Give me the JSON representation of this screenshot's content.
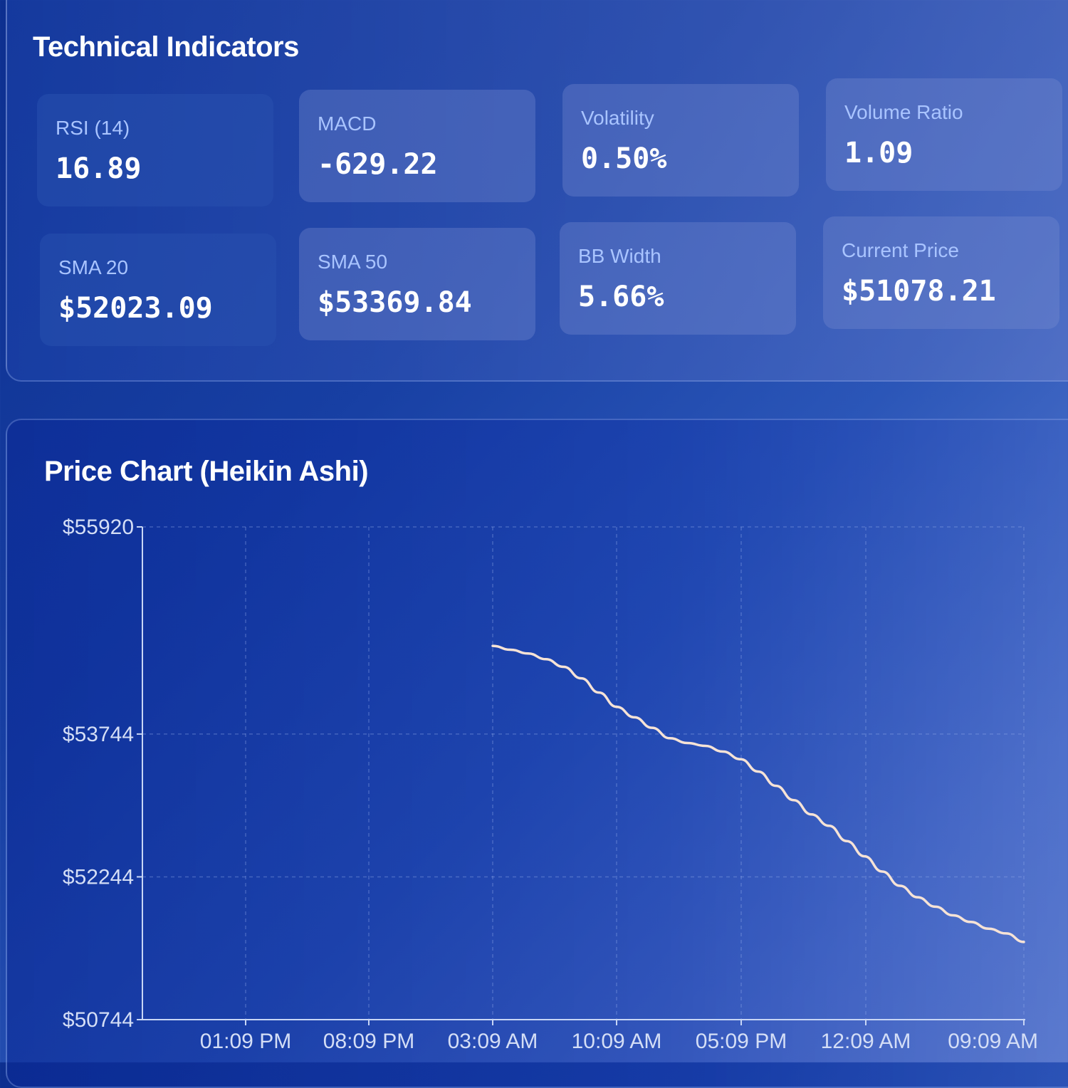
{
  "indicators": {
    "title": "Technical Indicators",
    "cards": [
      {
        "label": "RSI (14)",
        "value": "16.89"
      },
      {
        "label": "MACD",
        "value": "-629.22"
      },
      {
        "label": "Volatility",
        "value": "0.50%"
      },
      {
        "label": "Volume Ratio",
        "value": "1.09"
      },
      {
        "label": "SMA 20",
        "value": "$52023.09"
      },
      {
        "label": "SMA 50",
        "value": "$53369.84"
      },
      {
        "label": "BB Width",
        "value": "5.66%"
      },
      {
        "label": "Current Price",
        "value": "$51078.21"
      }
    ]
  },
  "price_chart": {
    "title": "Price Chart (Heikin Ashi)"
  },
  "chart_data": {
    "type": "line",
    "title": "Price Chart (Heikin Ashi)",
    "xlabel": "",
    "ylabel": "",
    "y_tick_labels": [
      "$55920",
      "$53744",
      "$52244",
      "$50744"
    ],
    "y_ticks": [
      55920,
      53744,
      52244,
      50744
    ],
    "ylim": [
      50744,
      55920
    ],
    "x_tick_labels": [
      "01:09 PM",
      "08:09 PM",
      "03:09 AM",
      "10:09 AM",
      "05:09 PM",
      "12:09 AM",
      "09:09 AM"
    ],
    "grid": true,
    "series": [
      {
        "x": [
          "03:09 AM",
          "04:09 AM",
          "05:09 AM",
          "06:09 AM",
          "07:09 AM",
          "08:09 AM",
          "09:09 AM",
          "10:09 AM",
          "11:09 AM",
          "12:09 PM",
          "01:09 PM",
          "02:09 PM",
          "03:09 PM",
          "04:09 PM",
          "05:09 PM",
          "06:09 PM",
          "07:09 PM",
          "08:09 PM",
          "09:09 PM",
          "10:09 PM",
          "11:09 PM",
          "12:09 AM",
          "01:09 AM",
          "02:09 AM",
          "03:09 AM",
          "04:09 AM",
          "05:09 AM",
          "06:09 AM",
          "07:09 AM",
          "08:09 AM",
          "09:09 AM"
        ],
        "values": [
          54670,
          54630,
          54590,
          54530,
          54450,
          54330,
          54180,
          54030,
          53920,
          53810,
          53700,
          53650,
          53620,
          53560,
          53480,
          53350,
          53200,
          53050,
          52900,
          52780,
          52620,
          52460,
          52300,
          52150,
          52030,
          51930,
          51840,
          51770,
          51700,
          51650,
          51560
        ]
      }
    ],
    "line_color": "#f6e3d6"
  }
}
